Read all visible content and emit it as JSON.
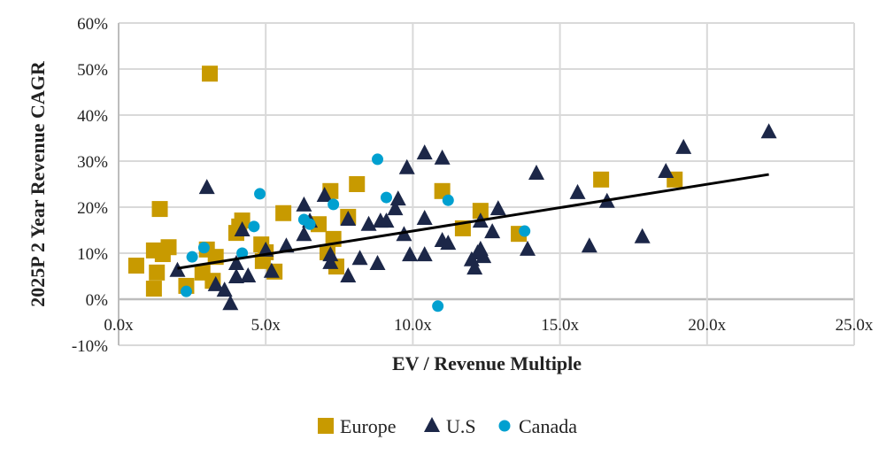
{
  "chart_data": {
    "type": "scatter",
    "xlabel": "EV / Revenue Multiple",
    "ylabel": "2025P 2 Year Revenue CAGR",
    "xlim": [
      0,
      25
    ],
    "ylim": [
      -10,
      60
    ],
    "x_ticks": [
      "0.0x",
      "5.0x",
      "10.0x",
      "15.0x",
      "20.0x",
      "25.0x"
    ],
    "x_tick_values": [
      0,
      5,
      10,
      15,
      20,
      25
    ],
    "y_ticks": [
      "-10%",
      "0%",
      "10%",
      "20%",
      "30%",
      "40%",
      "50%",
      "60%"
    ],
    "y_tick_values": [
      -10,
      0,
      10,
      20,
      30,
      40,
      50,
      60
    ],
    "grid": true,
    "legend_position": "bottom",
    "series": [
      {
        "name": "Europe",
        "marker": "square",
        "color": "#C89A00",
        "points": [
          [
            0.6,
            7.3
          ],
          [
            1.2,
            2.3
          ],
          [
            1.2,
            10.6
          ],
          [
            1.4,
            19.6
          ],
          [
            1.5,
            9.8
          ],
          [
            1.3,
            5.8
          ],
          [
            1.7,
            11.3
          ],
          [
            2.3,
            2.9
          ],
          [
            3.1,
            49
          ],
          [
            3.0,
            10.8
          ],
          [
            2.85,
            5.8
          ],
          [
            3.2,
            4
          ],
          [
            3.3,
            9.2
          ],
          [
            4.0,
            14.4
          ],
          [
            4.1,
            15.8
          ],
          [
            4.2,
            17.1
          ],
          [
            4.85,
            11.9
          ],
          [
            4.9,
            8.3
          ],
          [
            5.0,
            10.2
          ],
          [
            5.3,
            6
          ],
          [
            5.6,
            18.7
          ],
          [
            6.8,
            16.3
          ],
          [
            7.1,
            10.2
          ],
          [
            7.2,
            23.5
          ],
          [
            7.3,
            13.1
          ],
          [
            7.4,
            7.1
          ],
          [
            7.8,
            17.9
          ],
          [
            8.1,
            25
          ],
          [
            11.0,
            23.5
          ],
          [
            11.7,
            15.4
          ],
          [
            12.3,
            19.2
          ],
          [
            13.6,
            14.2
          ],
          [
            16.4,
            26
          ],
          [
            18.9,
            26
          ]
        ]
      },
      {
        "name": "U.S",
        "marker": "triangle",
        "color": "#1C2748",
        "points": [
          [
            2.0,
            6.2
          ],
          [
            3.0,
            24.2
          ],
          [
            3.3,
            3.1
          ],
          [
            3.6,
            1.9
          ],
          [
            3.8,
            -1
          ],
          [
            4.0,
            7.7
          ],
          [
            4.0,
            4.8
          ],
          [
            4.2,
            15
          ],
          [
            4.4,
            5
          ],
          [
            5.0,
            10.6
          ],
          [
            5.2,
            6
          ],
          [
            5.7,
            11.5
          ],
          [
            6.3,
            14
          ],
          [
            6.3,
            20.4
          ],
          [
            6.5,
            16.9
          ],
          [
            7.0,
            22.5
          ],
          [
            7.2,
            9.6
          ],
          [
            7.2,
            7.9
          ],
          [
            7.8,
            5
          ],
          [
            7.8,
            17.3
          ],
          [
            8.2,
            8.8
          ],
          [
            8.5,
            16.2
          ],
          [
            8.8,
            7.7
          ],
          [
            8.9,
            16.9
          ],
          [
            9.1,
            16.9
          ],
          [
            9.4,
            19.6
          ],
          [
            9.5,
            21.7
          ],
          [
            9.7,
            14
          ],
          [
            9.8,
            28.5
          ],
          [
            9.9,
            9.6
          ],
          [
            10.4,
            9.6
          ],
          [
            10.4,
            17.5
          ],
          [
            10.4,
            31.7
          ],
          [
            11.0,
            30.6
          ],
          [
            11.0,
            12.7
          ],
          [
            11.2,
            12.1
          ],
          [
            12.0,
            8.5
          ],
          [
            12.1,
            6.7
          ],
          [
            12.2,
            10
          ],
          [
            12.3,
            10.8
          ],
          [
            12.3,
            16.9
          ],
          [
            12.4,
            9.2
          ],
          [
            12.7,
            14.6
          ],
          [
            12.9,
            19.6
          ],
          [
            13.9,
            10.8
          ],
          [
            14.2,
            27.3
          ],
          [
            15.6,
            23.1
          ],
          [
            16.0,
            11.5
          ],
          [
            16.6,
            21.2
          ],
          [
            17.8,
            13.5
          ],
          [
            18.6,
            27.7
          ],
          [
            19.2,
            32.9
          ],
          [
            22.1,
            36.3
          ]
        ]
      },
      {
        "name": "Canada",
        "marker": "circle",
        "color": "#00A0D0",
        "points": [
          [
            2.3,
            1.7
          ],
          [
            2.5,
            9.2
          ],
          [
            2.9,
            11.2
          ],
          [
            4.2,
            10
          ],
          [
            4.6,
            15.8
          ],
          [
            4.8,
            22.9
          ],
          [
            6.3,
            17.3
          ],
          [
            6.5,
            16.3
          ],
          [
            7.3,
            20.6
          ],
          [
            8.8,
            30.4
          ],
          [
            9.1,
            22.1
          ],
          [
            10.85,
            -1.5
          ],
          [
            11.2,
            21.5
          ],
          [
            13.8,
            14.8
          ]
        ]
      }
    ],
    "trendline": {
      "x": [
        2.0,
        22.1
      ],
      "y": [
        6.7,
        27.1
      ],
      "color": "#000000"
    }
  }
}
